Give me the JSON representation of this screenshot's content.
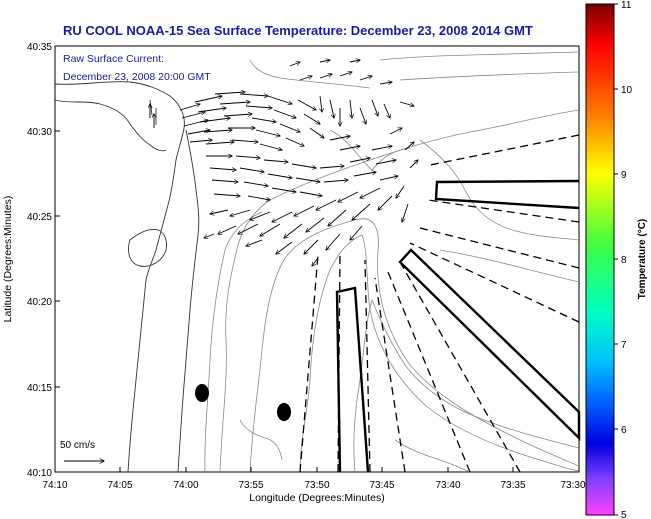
{
  "title": "RU COOL  NOAA-15  Sea Surface Temperature:  December 23, 2008 2014 GMT",
  "legend": {
    "line1": "Raw Surface Current:",
    "line2": "December 23, 2008 20:00 GMT"
  },
  "scale": {
    "label": "50 cm/s"
  },
  "axes": {
    "xlabel": "Longitude (Degrees:Minutes)",
    "ylabel": "Latitude (Degrees:Minutes)",
    "xticks": [
      "74:10",
      "74:05",
      "74:00",
      "73:55",
      "73:50",
      "73:45",
      "73:40",
      "73:35",
      "73:30"
    ],
    "yticks": [
      "40:35",
      "40:30",
      "40:25",
      "40:20",
      "40:15",
      "40:10"
    ]
  },
  "colorbar": {
    "label": "Temperature (°C)",
    "ticks": [
      "11",
      "10",
      "9",
      "8",
      "7",
      "6",
      "5"
    ],
    "colors": [
      "#8b0000",
      "#ff0000",
      "#ff8000",
      "#ffff00",
      "#80ff40",
      "#00ff80",
      "#00e0ff",
      "#0080ff",
      "#0000ff",
      "#4000c0",
      "#ff40ff"
    ]
  },
  "colors": {
    "title": "#1a1aa0",
    "vectors": "#000000",
    "contours": "#888888"
  }
}
